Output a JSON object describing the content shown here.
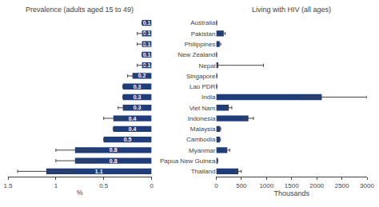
{
  "chart_data": [
    {
      "type": "bar",
      "orientation": "horizontal",
      "title": "Prevalence (adults aged 15 to 49)",
      "xlabel": "%",
      "categories": [
        "Australia",
        "Pakistan",
        "Philippines",
        "New Zealand",
        "Nepal",
        "Singapore",
        "Lao PDR",
        "India",
        "Viet Nam",
        "Indonesia",
        "Malaysia",
        "Cambodia",
        "Myanmar",
        "Papua New Guinea",
        "Thailand"
      ],
      "values": [
        0.1,
        0.1,
        0.1,
        0.1,
        0.1,
        0.2,
        0.3,
        0.3,
        0.3,
        0.4,
        0.4,
        0.5,
        0.8,
        0.8,
        1.1
      ],
      "error_low": [
        0.0,
        0.05,
        0.05,
        0.0,
        0.05,
        0.05,
        0.0,
        0.0,
        0.05,
        0.1,
        0.0,
        0.0,
        0.2,
        0.2,
        0.3
      ],
      "error_high": [
        0.0,
        0.05,
        0.05,
        0.0,
        0.05,
        0.05,
        0.0,
        0.0,
        0.05,
        0.1,
        0.0,
        0.0,
        0.2,
        0.2,
        0.3
      ],
      "color": "#1f3d7a",
      "xlim": [
        1.5,
        0
      ],
      "xticks": [
        1.5,
        1,
        0.5,
        0
      ],
      "data_labels": true,
      "tick_labels": "x",
      "grid": false
    },
    {
      "type": "bar",
      "orientation": "horizontal",
      "title": "Living with HIV (all ages)",
      "xlabel": "Thousands",
      "categories": [
        "Australia",
        "Pakistan",
        "Philippines",
        "New Zealand",
        "Nepal",
        "Singapore",
        "Lao PDR",
        "India",
        "Viet Nam",
        "Indonesia",
        "Malaysia",
        "Cambodia",
        "Myanmar",
        "Papua New Guinea",
        "Thailand"
      ],
      "values": [
        5,
        150,
        70,
        3,
        40,
        10,
        8,
        2100,
        250,
        640,
        80,
        75,
        220,
        25,
        440
      ],
      "error_low": [
        0,
        30,
        20,
        0,
        5,
        0,
        0,
        400,
        60,
        100,
        10,
        10,
        50,
        5,
        60
      ],
      "error_high": [
        0,
        30,
        20,
        0,
        900,
        5,
        0,
        900,
        60,
        100,
        10,
        10,
        50,
        5,
        60
      ],
      "color": "#1f3d7a",
      "xlim": [
        0,
        3000
      ],
      "xticks": [
        0,
        500,
        1000,
        1500,
        2000,
        2500,
        3000
      ],
      "data_labels": false,
      "grid": false
    }
  ]
}
